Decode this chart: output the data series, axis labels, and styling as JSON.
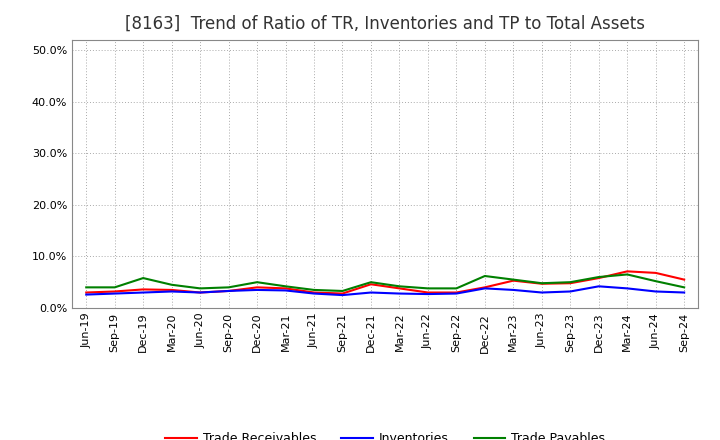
{
  "title": "[8163]  Trend of Ratio of TR, Inventories and TP to Total Assets",
  "x_labels": [
    "Jun-19",
    "Sep-19",
    "Dec-19",
    "Mar-20",
    "Jun-20",
    "Sep-20",
    "Dec-20",
    "Mar-21",
    "Jun-21",
    "Sep-21",
    "Dec-21",
    "Mar-22",
    "Jun-22",
    "Sep-22",
    "Dec-22",
    "Mar-23",
    "Jun-23",
    "Sep-23",
    "Dec-23",
    "Mar-24",
    "Jun-24",
    "Sep-24"
  ],
  "trade_receivables": [
    0.03,
    0.032,
    0.036,
    0.035,
    0.03,
    0.033,
    0.04,
    0.038,
    0.03,
    0.028,
    0.046,
    0.038,
    0.03,
    0.03,
    0.04,
    0.053,
    0.047,
    0.048,
    0.058,
    0.071,
    0.068,
    0.055
  ],
  "inventories": [
    0.026,
    0.028,
    0.03,
    0.032,
    0.03,
    0.033,
    0.035,
    0.034,
    0.028,
    0.025,
    0.03,
    0.028,
    0.027,
    0.028,
    0.038,
    0.035,
    0.03,
    0.032,
    0.042,
    0.038,
    0.032,
    0.03
  ],
  "trade_payables": [
    0.04,
    0.04,
    0.058,
    0.045,
    0.038,
    0.04,
    0.05,
    0.042,
    0.035,
    0.033,
    0.05,
    0.042,
    0.038,
    0.038,
    0.062,
    0.055,
    0.048,
    0.05,
    0.06,
    0.065,
    0.052,
    0.04
  ],
  "tr_color": "#ff0000",
  "inv_color": "#0000ff",
  "tp_color": "#008000",
  "ylim": [
    0.0,
    0.52
  ],
  "yticks": [
    0.0,
    0.1,
    0.2,
    0.3,
    0.4,
    0.5
  ],
  "background_color": "#ffffff",
  "grid_color": "#aaaaaa",
  "title_fontsize": 12,
  "tick_fontsize": 8,
  "legend_fontsize": 9
}
